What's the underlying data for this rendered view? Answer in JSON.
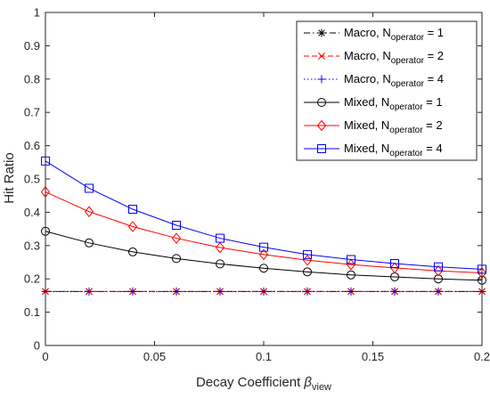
{
  "chart_data": {
    "type": "line",
    "title": "",
    "xlabel": "Decay Coefficient",
    "xlabel_symbol": "β",
    "xlabel_subscript": "view",
    "ylabel": "Hit Ratio",
    "xlim": [
      0,
      0.2
    ],
    "ylim": [
      0,
      1
    ],
    "xticks": [
      "0",
      "0.05",
      "0.1",
      "0.15",
      "0.2"
    ],
    "yticks": [
      "0",
      "0.1",
      "0.2",
      "0.3",
      "0.4",
      "0.5",
      "0.6",
      "0.7",
      "0.8",
      "0.9",
      "1"
    ],
    "xtick_values": [
      0,
      0.05,
      0.1,
      0.15,
      0.2
    ],
    "ytick_values": [
      0,
      0.1,
      0.2,
      0.3,
      0.4,
      0.5,
      0.6,
      0.7,
      0.8,
      0.9,
      1
    ],
    "grid": false,
    "legend_placement": "top-right",
    "x": [
      0,
      0.02,
      0.04,
      0.06,
      0.08,
      0.1,
      0.12,
      0.14,
      0.16,
      0.18,
      0.2
    ],
    "series": [
      {
        "name_prefix": "Macro, N",
        "name_sub": "operator",
        "name_suffix": " = 1",
        "color": "#000000",
        "dash": "dashdot",
        "marker": "asterisk",
        "values": [
          0.162,
          0.162,
          0.162,
          0.162,
          0.162,
          0.162,
          0.162,
          0.162,
          0.162,
          0.162,
          0.162
        ]
      },
      {
        "name_prefix": "Macro, N",
        "name_sub": "operator",
        "name_suffix": " = 2",
        "color": "#ff0000",
        "dash": "dashed",
        "marker": "x",
        "values": [
          0.162,
          0.162,
          0.162,
          0.162,
          0.162,
          0.162,
          0.162,
          0.162,
          0.162,
          0.162,
          0.162
        ]
      },
      {
        "name_prefix": "Macro, N",
        "name_sub": "operator",
        "name_suffix": " = 4",
        "color": "#0000ff",
        "dash": "dotted",
        "marker": "plus",
        "values": [
          0.162,
          0.162,
          0.162,
          0.162,
          0.162,
          0.162,
          0.162,
          0.162,
          0.162,
          0.162,
          0.162
        ]
      },
      {
        "name_prefix": "Mixed, N",
        "name_sub": "operator",
        "name_suffix": " = 1",
        "color": "#000000",
        "dash": "solid",
        "marker": "circle",
        "values": [
          0.343,
          0.308,
          0.281,
          0.261,
          0.245,
          0.232,
          0.221,
          0.212,
          0.206,
          0.2,
          0.196
        ]
      },
      {
        "name_prefix": "Mixed, N",
        "name_sub": "operator",
        "name_suffix": " = 2",
        "color": "#ff0000",
        "dash": "solid",
        "marker": "diamond",
        "values": [
          0.461,
          0.402,
          0.357,
          0.322,
          0.294,
          0.273,
          0.256,
          0.243,
          0.233,
          0.224,
          0.218
        ]
      },
      {
        "name_prefix": "Mixed, N",
        "name_sub": "operator",
        "name_suffix": " = 4",
        "color": "#0000ff",
        "dash": "solid",
        "marker": "square",
        "values": [
          0.554,
          0.472,
          0.409,
          0.361,
          0.322,
          0.295,
          0.273,
          0.258,
          0.246,
          0.236,
          0.229
        ]
      }
    ]
  }
}
